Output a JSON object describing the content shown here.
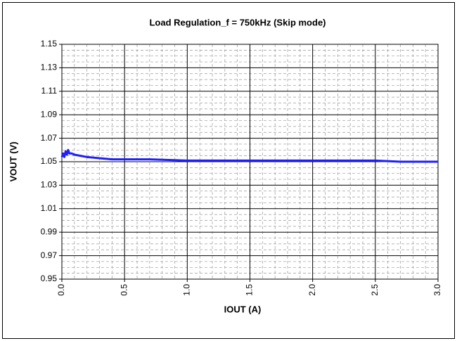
{
  "chart_data": {
    "type": "line",
    "title": "Load Regulation_f = 750kHz (Skip mode)",
    "x_label": "IOUT (A)",
    "y_label": "VOUT (V)",
    "x": [
      0,
      0.01,
      0.02,
      0.03,
      0.04,
      0.05,
      0.06,
      0.08,
      0.1,
      0.15,
      0.2,
      0.3,
      0.4,
      0.5,
      0.7,
      1.0,
      1.5,
      2.0,
      2.5,
      2.7,
      3.0
    ],
    "series": [
      {
        "color": "#1f1fff",
        "values": [
          1.054,
          1.057,
          1.054,
          1.059,
          1.056,
          1.06,
          1.057,
          1.057,
          1.056,
          1.055,
          1.054,
          1.053,
          1.052,
          1.052,
          1.052,
          1.051,
          1.051,
          1.051,
          1.051,
          1.05,
          1.05
        ]
      }
    ],
    "xlim": [
      0,
      3
    ],
    "xticks": [
      {
        "value": 0,
        "label": "0.0"
      },
      0.5,
      {
        "value": 1,
        "label": "1.0"
      },
      1.5,
      {
        "value": 2,
        "label": "2.0"
      },
      2.5,
      {
        "value": 3,
        "label": "3.0"
      }
    ],
    "ylim": [
      0.95,
      1.15
    ],
    "yticks": [
      0.95,
      0.97,
      0.99,
      1.01,
      1.03,
      1.05,
      1.07,
      1.09,
      1.11,
      1.13,
      1.15
    ],
    "grid": true,
    "minor_grid": true
  }
}
